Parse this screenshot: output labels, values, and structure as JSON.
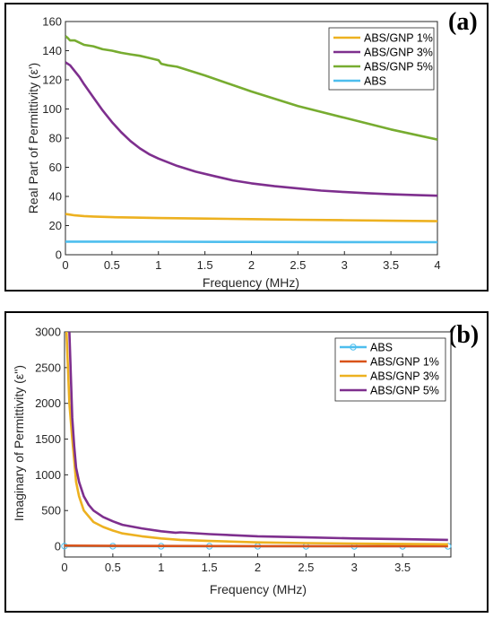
{
  "chart_data": [
    {
      "type": "line",
      "panel_label": "(a)",
      "xlabel": "Frequency (MHz)",
      "ylabel": "Real Part of Permittivity (ε')",
      "xlim": [
        0,
        4
      ],
      "ylim": [
        0,
        160
      ],
      "xticks": [
        "0",
        "0.5",
        "1",
        "1.5",
        "2",
        "2.5",
        "3",
        "3.5",
        "4"
      ],
      "yticks": [
        "0",
        "20",
        "40",
        "60",
        "80",
        "100",
        "120",
        "140",
        "160"
      ],
      "grid": false,
      "legend_position": "top-right",
      "legend_order": [
        "ABS/GNP 1%",
        "ABS/GNP 3%",
        "ABS/GNP 5%",
        "ABS"
      ],
      "series": [
        {
          "name": "ABS/GNP 1%",
          "color": "#EDB120",
          "x": [
            0,
            0.05,
            0.1,
            0.2,
            0.3,
            0.5,
            0.75,
            1,
            1.5,
            2,
            2.5,
            3,
            3.5,
            4
          ],
          "y": [
            28,
            27.5,
            27,
            26.5,
            26.2,
            25.8,
            25.5,
            25.2,
            24.8,
            24.4,
            24,
            23.7,
            23.3,
            23
          ]
        },
        {
          "name": "ABS/GNP 3%",
          "color": "#7E2F8E",
          "x": [
            0,
            0.05,
            0.1,
            0.15,
            0.2,
            0.3,
            0.4,
            0.5,
            0.6,
            0.7,
            0.8,
            0.9,
            1,
            1.2,
            1.4,
            1.6,
            1.8,
            2,
            2.25,
            2.5,
            2.75,
            3,
            3.25,
            3.5,
            3.75,
            4
          ],
          "y": [
            132,
            130,
            126,
            122,
            117,
            108,
            99,
            91,
            84,
            78,
            73,
            69,
            66,
            61,
            57,
            54,
            51,
            49,
            47,
            45.5,
            44,
            43,
            42.2,
            41.5,
            41,
            40.5
          ]
        },
        {
          "name": "ABS/GNP 5%",
          "color": "#77AC30",
          "x": [
            0,
            0.02,
            0.05,
            0.1,
            0.2,
            0.3,
            0.4,
            0.5,
            0.6,
            0.7,
            0.8,
            0.9,
            1,
            1.03,
            1.1,
            1.2,
            1.5,
            2,
            2.5,
            3,
            3.5,
            4
          ],
          "y": [
            150,
            149,
            147,
            147,
            144,
            143,
            141,
            140,
            138.5,
            137.5,
            136.5,
            135,
            133.5,
            131,
            130,
            129,
            123,
            112,
            102,
            94,
            86,
            79
          ]
        },
        {
          "name": "ABS",
          "color": "#4DBEEE",
          "x": [
            0,
            1,
            2,
            3,
            4
          ],
          "y": [
            9,
            8.9,
            8.8,
            8.7,
            8.6
          ]
        }
      ]
    },
    {
      "type": "line",
      "panel_label": "(b)",
      "xlabel": "Frequency (MHz)",
      "ylabel": "Imaginary of Permittivity (ε'')",
      "xlim": [
        0,
        4
      ],
      "ylim": [
        -150,
        3000
      ],
      "xticks": [
        "0",
        "0.5",
        "1",
        "1.5",
        "2",
        "2.5",
        "3",
        "3.5"
      ],
      "yticks": [
        "0",
        "500",
        "1000",
        "1500",
        "2000",
        "2500",
        "3000"
      ],
      "grid": false,
      "legend_position": "top-right",
      "legend_order": [
        "ABS",
        "ABS/GNP 1%",
        "ABS/GNP 3%",
        "ABS/GNP 5%"
      ],
      "series": [
        {
          "name": "ABS",
          "color": "#4DBEEE",
          "marker": "circle",
          "x": [
            0,
            0.5,
            1,
            1.5,
            2,
            2.5,
            3,
            3.5,
            3.97
          ],
          "y": [
            3,
            2,
            1,
            1,
            1,
            0.5,
            0.5,
            0.5,
            0.5
          ]
        },
        {
          "name": "ABS/GNP 1%",
          "color": "#D95319",
          "x": [
            0,
            0.5,
            1,
            1.5,
            2,
            2.5,
            3,
            3.5,
            3.97
          ],
          "y": [
            10,
            6,
            4,
            3,
            2,
            2,
            2,
            2,
            2
          ]
        },
        {
          "name": "ABS/GNP 3%",
          "color": "#EDB120",
          "x": [
            0.02,
            0.05,
            0.08,
            0.1,
            0.12,
            0.15,
            0.2,
            0.25,
            0.3,
            0.4,
            0.5,
            0.6,
            0.8,
            1,
            1.2,
            1.5,
            2,
            2.5,
            3,
            3.5,
            3.97
          ],
          "y": [
            3000,
            2000,
            1500,
            1200,
            900,
            700,
            500,
            420,
            340,
            270,
            220,
            180,
            140,
            110,
            90,
            75,
            55,
            45,
            38,
            33,
            28
          ]
        },
        {
          "name": "ABS/GNP 5%",
          "color": "#7E2F8E",
          "x": [
            0.05,
            0.08,
            0.1,
            0.12,
            0.15,
            0.2,
            0.25,
            0.3,
            0.4,
            0.5,
            0.6,
            0.8,
            1,
            1.15,
            1.2,
            1.5,
            2,
            2.5,
            3,
            3.5,
            3.97
          ],
          "y": [
            3000,
            1800,
            1400,
            1100,
            900,
            700,
            580,
            500,
            410,
            350,
            300,
            250,
            210,
            190,
            195,
            170,
            140,
            125,
            110,
            100,
            90
          ]
        }
      ]
    }
  ]
}
